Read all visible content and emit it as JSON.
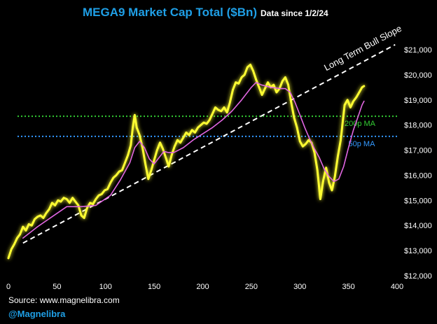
{
  "header": {
    "title": "MEGA9 Market Cap Total ($Bn)",
    "subtitle": "Data since 1/2/24"
  },
  "footer": {
    "source": "Source: www.magnelibra.com",
    "handle": "@Magnelibra"
  },
  "colors": {
    "background": "#000000",
    "price": "#ffff33",
    "ma_line": "#e066e0",
    "ma200": "#33cc33",
    "ma50": "#3399ff",
    "trend": "#ffffff",
    "title": "#1f9fe6"
  },
  "chart_data": {
    "type": "line",
    "xlim": [
      0,
      400
    ],
    "ylim": [
      12000,
      21000
    ],
    "x_ticks": [
      0,
      50,
      100,
      150,
      200,
      250,
      300,
      350,
      400
    ],
    "y_ticks": [
      {
        "value": 12000,
        "label": "$12,000"
      },
      {
        "value": 13000,
        "label": "$13,000"
      },
      {
        "value": 14000,
        "label": "$14,000"
      },
      {
        "value": 15000,
        "label": "$15,000"
      },
      {
        "value": 16000,
        "label": "$16,000"
      },
      {
        "value": 17000,
        "label": "$17,000"
      },
      {
        "value": 18000,
        "label": "$18,000"
      },
      {
        "value": 19000,
        "label": "$19,000"
      },
      {
        "value": 20000,
        "label": "$20,000"
      },
      {
        "value": 21000,
        "label": "$21,000"
      }
    ],
    "grid": false,
    "series": [
      {
        "role": "price",
        "color": "#ffff33",
        "points": [
          [
            0,
            12700
          ],
          [
            3,
            13050
          ],
          [
            6,
            13250
          ],
          [
            9,
            13500
          ],
          [
            12,
            13650
          ],
          [
            15,
            13950
          ],
          [
            18,
            13800
          ],
          [
            21,
            14050
          ],
          [
            24,
            14000
          ],
          [
            27,
            14250
          ],
          [
            30,
            14350
          ],
          [
            33,
            14400
          ],
          [
            36,
            14300
          ],
          [
            39,
            14500
          ],
          [
            42,
            14650
          ],
          [
            45,
            14900
          ],
          [
            48,
            14800
          ],
          [
            51,
            15000
          ],
          [
            54,
            14950
          ],
          [
            57,
            15100
          ],
          [
            60,
            15050
          ],
          [
            63,
            14900
          ],
          [
            66,
            15100
          ],
          [
            69,
            14950
          ],
          [
            72,
            14800
          ],
          [
            75,
            14400
          ],
          [
            78,
            14300
          ],
          [
            81,
            14700
          ],
          [
            84,
            14900
          ],
          [
            87,
            14850
          ],
          [
            90,
            15050
          ],
          [
            93,
            15200
          ],
          [
            96,
            15250
          ],
          [
            99,
            15400
          ],
          [
            102,
            15450
          ],
          [
            105,
            15700
          ],
          [
            108,
            15900
          ],
          [
            111,
            16000
          ],
          [
            114,
            16150
          ],
          [
            117,
            16200
          ],
          [
            120,
            16500
          ],
          [
            123,
            16800
          ],
          [
            126,
            17200
          ],
          [
            128,
            17900
          ],
          [
            130,
            18400
          ],
          [
            132,
            17900
          ],
          [
            135,
            17600
          ],
          [
            138,
            17100
          ],
          [
            141,
            16450
          ],
          [
            144,
            15850
          ],
          [
            147,
            16200
          ],
          [
            150,
            16600
          ],
          [
            153,
            17000
          ],
          [
            156,
            17300
          ],
          [
            159,
            17050
          ],
          [
            162,
            16700
          ],
          [
            165,
            16350
          ],
          [
            168,
            16800
          ],
          [
            171,
            17150
          ],
          [
            174,
            17400
          ],
          [
            177,
            17300
          ],
          [
            180,
            17500
          ],
          [
            183,
            17700
          ],
          [
            186,
            17600
          ],
          [
            189,
            17800
          ],
          [
            192,
            17700
          ],
          [
            195,
            17900
          ],
          [
            198,
            18000
          ],
          [
            201,
            18100
          ],
          [
            204,
            18050
          ],
          [
            207,
            18200
          ],
          [
            210,
            18450
          ],
          [
            213,
            18700
          ],
          [
            216,
            18600
          ],
          [
            219,
            18550
          ],
          [
            222,
            18700
          ],
          [
            225,
            18500
          ],
          [
            228,
            18900
          ],
          [
            231,
            19400
          ],
          [
            234,
            19700
          ],
          [
            237,
            19650
          ],
          [
            240,
            19900
          ],
          [
            243,
            20000
          ],
          [
            246,
            20300
          ],
          [
            249,
            20400
          ],
          [
            252,
            20150
          ],
          [
            255,
            19800
          ],
          [
            258,
            19500
          ],
          [
            261,
            19200
          ],
          [
            264,
            19450
          ],
          [
            267,
            19700
          ],
          [
            270,
            19500
          ],
          [
            273,
            19600
          ],
          [
            276,
            19300
          ],
          [
            279,
            19450
          ],
          [
            282,
            19750
          ],
          [
            285,
            19900
          ],
          [
            288,
            19600
          ],
          [
            291,
            18900
          ],
          [
            294,
            18300
          ],
          [
            297,
            17900
          ],
          [
            300,
            17350
          ],
          [
            303,
            17150
          ],
          [
            306,
            17250
          ],
          [
            309,
            17400
          ],
          [
            312,
            17300
          ],
          [
            315,
            16900
          ],
          [
            318,
            16200
          ],
          [
            321,
            15050
          ],
          [
            324,
            15800
          ],
          [
            327,
            16300
          ],
          [
            330,
            15700
          ],
          [
            333,
            15400
          ],
          [
            336,
            15950
          ],
          [
            339,
            16750
          ],
          [
            342,
            17400
          ],
          [
            344,
            18100
          ],
          [
            346,
            18800
          ],
          [
            349,
            19000
          ],
          [
            352,
            18700
          ],
          [
            355,
            18950
          ],
          [
            358,
            19100
          ],
          [
            361,
            19300
          ],
          [
            364,
            19500
          ],
          [
            366,
            19550
          ]
        ]
      },
      {
        "role": "moving-average",
        "color": "#e066e0",
        "points": [
          [
            15,
            13500
          ],
          [
            30,
            13950
          ],
          [
            45,
            14350
          ],
          [
            60,
            14750
          ],
          [
            75,
            14750
          ],
          [
            90,
            14800
          ],
          [
            105,
            15200
          ],
          [
            115,
            15800
          ],
          [
            125,
            16500
          ],
          [
            130,
            17100
          ],
          [
            135,
            17350
          ],
          [
            140,
            17100
          ],
          [
            145,
            16650
          ],
          [
            150,
            16450
          ],
          [
            155,
            16700
          ],
          [
            160,
            16950
          ],
          [
            165,
            16900
          ],
          [
            170,
            16900
          ],
          [
            180,
            17100
          ],
          [
            190,
            17400
          ],
          [
            200,
            17650
          ],
          [
            210,
            17900
          ],
          [
            220,
            18200
          ],
          [
            230,
            18550
          ],
          [
            240,
            19000
          ],
          [
            250,
            19500
          ],
          [
            255,
            19700
          ],
          [
            260,
            19600
          ],
          [
            270,
            19500
          ],
          [
            280,
            19450
          ],
          [
            285,
            19450
          ],
          [
            290,
            19300
          ],
          [
            295,
            18900
          ],
          [
            300,
            18400
          ],
          [
            305,
            17900
          ],
          [
            310,
            17450
          ],
          [
            315,
            17050
          ],
          [
            320,
            16700
          ],
          [
            325,
            16250
          ],
          [
            330,
            15950
          ],
          [
            335,
            15750
          ],
          [
            340,
            15850
          ],
          [
            345,
            16350
          ],
          [
            350,
            17100
          ],
          [
            355,
            17800
          ],
          [
            360,
            18350
          ],
          [
            364,
            18800
          ],
          [
            366,
            18950
          ]
        ]
      }
    ],
    "reference_lines": [
      {
        "name": "200p MA",
        "y": 18350,
        "color": "#33cc33",
        "style": "dotted",
        "label_x": 338
      },
      {
        "name": "50p MA",
        "y": 17550,
        "color": "#3399ff",
        "style": "dotted",
        "label_x": 342
      }
    ],
    "trend_line": {
      "name": "Long Term Bull Slope",
      "color": "#ffffff",
      "style": "dashed",
      "from": [
        15,
        13300
      ],
      "to": [
        398,
        21200
      ]
    }
  }
}
